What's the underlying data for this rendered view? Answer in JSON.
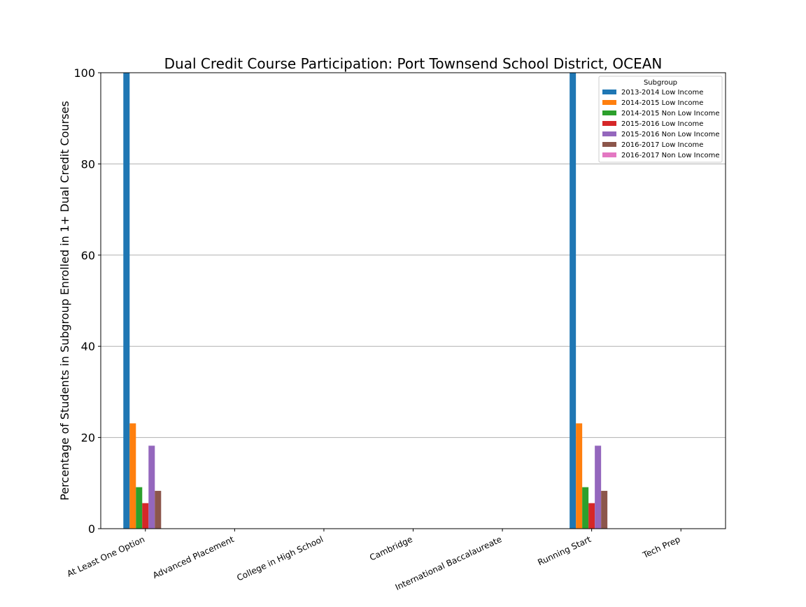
{
  "chart_data": {
    "type": "bar",
    "title": "Dual Credit Course Participation: Port Townsend School District, OCEAN",
    "xlabel": "",
    "ylabel": "Percentage of Students in Subgroup Enrolled in 1+ Dual Credit Courses",
    "ylim": [
      0,
      100
    ],
    "yticks": [
      0,
      20,
      40,
      60,
      80,
      100
    ],
    "grid": "horizontal",
    "legend_position": "top-right",
    "legend_title": "Subgroup",
    "categories": [
      "At Least One Option",
      "Advanced Placement",
      "College in High School",
      "Cambridge",
      "International Baccalaureate",
      "Running Start",
      "Tech Prep"
    ],
    "series": [
      {
        "name": "2013-2014 Low Income",
        "color": "#1f77b4",
        "values": [
          100,
          0,
          0,
          0,
          0,
          100,
          0
        ]
      },
      {
        "name": "2014-2015 Low Income",
        "color": "#ff7f0e",
        "values": [
          23.1,
          0,
          0,
          0,
          0,
          23.1,
          0
        ]
      },
      {
        "name": "2014-2015 Non Low Income",
        "color": "#2ca02c",
        "values": [
          9.1,
          0,
          0,
          0,
          0,
          9.1,
          0
        ]
      },
      {
        "name": "2015-2016 Low Income",
        "color": "#d62728",
        "values": [
          5.6,
          0,
          0,
          0,
          0,
          5.6,
          0
        ]
      },
      {
        "name": "2015-2016 Non Low Income",
        "color": "#9467bd",
        "values": [
          18.2,
          0,
          0,
          0,
          0,
          18.2,
          0
        ]
      },
      {
        "name": "2016-2017 Low Income",
        "color": "#8c564b",
        "values": [
          8.3,
          0,
          0,
          0,
          0,
          8.3,
          0
        ]
      },
      {
        "name": "2016-2017 Non Low Income",
        "color": "#e377c2",
        "values": [
          0,
          0,
          0,
          0,
          0,
          0,
          0
        ]
      }
    ]
  }
}
